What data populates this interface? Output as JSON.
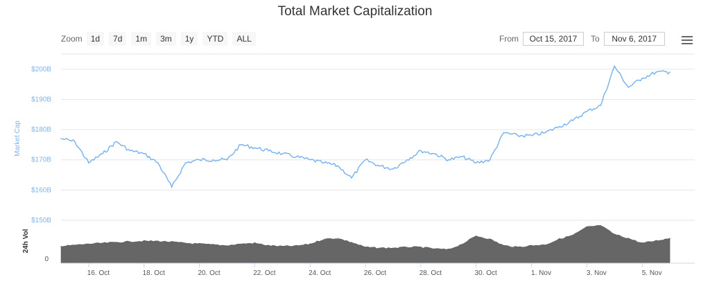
{
  "toolbar": {
    "zoom_label": "Zoom",
    "zoom_buttons": [
      "1d",
      "7d",
      "1m",
      "3m",
      "1y",
      "YTD",
      "ALL"
    ],
    "from_label": "From",
    "from_value": "Oct 15, 2017",
    "to_label": "To",
    "to_value": "Nov 6, 2017",
    "menu_icon": "hamburger-menu-icon"
  },
  "chart_data": {
    "type": "line",
    "title": "Total Market Capitalization",
    "ylabel": "Market Cap",
    "ylim": [
      150,
      205
    ],
    "yticks": [
      "$150B",
      "$160B",
      "$170B",
      "$180B",
      "$190B",
      "$200B"
    ],
    "xlim": [
      "2017-10-15",
      "2017-11-06"
    ],
    "xticks": [
      "16. Oct",
      "18. Oct",
      "20. Oct",
      "22. Oct",
      "24. Oct",
      "26. Oct",
      "28. Oct",
      "30. Oct",
      "1. Nov",
      "3. Nov",
      "5. Nov"
    ],
    "grid": true,
    "series": [
      {
        "name": "Market Cap",
        "color": "#7cb5ec",
        "x": [
          "2017-10-15",
          "2017-10-15T12:00",
          "2017-10-16",
          "2017-10-16T12:00",
          "2017-10-17",
          "2017-10-17T12:00",
          "2017-10-18",
          "2017-10-18T12:00",
          "2017-10-19",
          "2017-10-19T12:00",
          "2017-10-20",
          "2017-10-20T12:00",
          "2017-10-21",
          "2017-10-21T12:00",
          "2017-10-22",
          "2017-10-22T12:00",
          "2017-10-23",
          "2017-10-23T12:00",
          "2017-10-24",
          "2017-10-24T12:00",
          "2017-10-25",
          "2017-10-25T12:00",
          "2017-10-26",
          "2017-10-26T12:00",
          "2017-10-27",
          "2017-10-27T12:00",
          "2017-10-28",
          "2017-10-28T12:00",
          "2017-10-29",
          "2017-10-29T12:00",
          "2017-10-30",
          "2017-10-30T12:00",
          "2017-10-31",
          "2017-10-31T12:00",
          "2017-11-01",
          "2017-11-01T12:00",
          "2017-11-02",
          "2017-11-02T12:00",
          "2017-11-03",
          "2017-11-03T12:00",
          "2017-11-04",
          "2017-11-04T12:00",
          "2017-11-05",
          "2017-11-05T12:00",
          "2017-11-06"
        ],
        "values": [
          177,
          176,
          169,
          172,
          176,
          173,
          172,
          169,
          161,
          169,
          170,
          170,
          170,
          175,
          174,
          173,
          172,
          171,
          170,
          169,
          168,
          164,
          170,
          168,
          167,
          170,
          173,
          172,
          170,
          171,
          169,
          170,
          179,
          178,
          178,
          179,
          181,
          183,
          186,
          188,
          201,
          194,
          197,
          199,
          199
        ]
      },
      {
        "name": "24h Vol",
        "color": "#666666",
        "x": [
          "2017-10-15",
          "2017-10-15T12:00",
          "2017-10-16",
          "2017-10-16T12:00",
          "2017-10-17",
          "2017-10-17T12:00",
          "2017-10-18",
          "2017-10-18T12:00",
          "2017-10-19",
          "2017-10-19T12:00",
          "2017-10-20",
          "2017-10-20T12:00",
          "2017-10-21",
          "2017-10-21T12:00",
          "2017-10-22",
          "2017-10-22T12:00",
          "2017-10-23",
          "2017-10-23T12:00",
          "2017-10-24",
          "2017-10-24T12:00",
          "2017-10-25",
          "2017-10-25T12:00",
          "2017-10-26",
          "2017-10-26T12:00",
          "2017-10-27",
          "2017-10-27T12:00",
          "2017-10-28",
          "2017-10-28T12:00",
          "2017-10-29",
          "2017-10-29T12:00",
          "2017-10-30",
          "2017-10-30T12:00",
          "2017-10-31",
          "2017-10-31T12:00",
          "2017-11-01",
          "2017-11-01T12:00",
          "2017-11-02",
          "2017-11-02T12:00",
          "2017-11-03",
          "2017-11-03T12:00",
          "2017-11-04",
          "2017-11-04T12:00",
          "2017-11-05",
          "2017-11-05T12:00",
          "2017-11-06"
        ],
        "values": [
          0.42,
          0.45,
          0.48,
          0.5,
          0.52,
          0.54,
          0.55,
          0.55,
          0.53,
          0.5,
          0.48,
          0.46,
          0.44,
          0.48,
          0.5,
          0.44,
          0.42,
          0.43,
          0.48,
          0.6,
          0.62,
          0.52,
          0.4,
          0.38,
          0.38,
          0.4,
          0.4,
          0.36,
          0.34,
          0.48,
          0.68,
          0.6,
          0.44,
          0.4,
          0.44,
          0.46,
          0.6,
          0.7,
          0.9,
          0.94,
          0.72,
          0.62,
          0.5,
          0.56,
          0.62
        ]
      }
    ],
    "volume_axis": {
      "label": "24h Vol",
      "ticks": [
        "0"
      ],
      "ylim": [
        0,
        1
      ]
    }
  }
}
